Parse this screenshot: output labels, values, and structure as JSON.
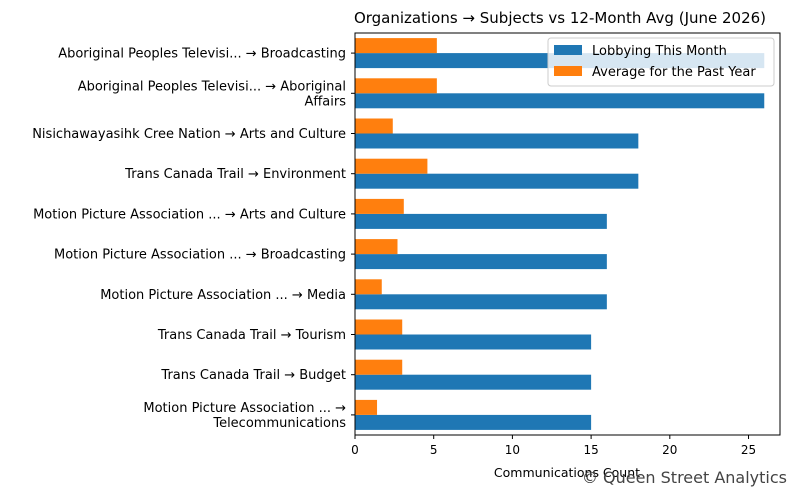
{
  "chart_data": {
    "type": "bar",
    "orientation": "horizontal",
    "title": "Organizations → Subjects vs 12-Month Avg (June 2026)",
    "xlabel": "Communications Count",
    "ylabel": "",
    "xlim": [
      0,
      27
    ],
    "xticks": [
      "0",
      "5",
      "10",
      "15",
      "20",
      "25"
    ],
    "grid": false,
    "legend_position": "top-right",
    "categories": [
      [
        "Aboriginal Peoples Televisi... → Broadcasting"
      ],
      [
        "Aboriginal Peoples Televisi... → Aboriginal",
        "Affairs"
      ],
      [
        "Nisichawayasihk Cree Nation → Arts and Culture"
      ],
      [
        "Trans Canada Trail → Environment"
      ],
      [
        "Motion Picture Association ... → Arts and Culture"
      ],
      [
        "Motion Picture Association ... → Broadcasting"
      ],
      [
        "Motion Picture Association ... → Media"
      ],
      [
        "Trans Canada Trail → Tourism"
      ],
      [
        "Trans Canada Trail → Budget"
      ],
      [
        "Motion Picture Association ... →",
        "Telecommunications"
      ]
    ],
    "series": [
      {
        "name": "Lobbying This Month",
        "color": "#1f77b4",
        "values": [
          26,
          26,
          18,
          18,
          16,
          16,
          16,
          15,
          15,
          15
        ]
      },
      {
        "name": "Average for the Past Year",
        "color": "#ff7f0e",
        "values": [
          5.2,
          5.2,
          2.4,
          4.6,
          3.1,
          2.7,
          1.7,
          3.0,
          3.0,
          1.4
        ]
      }
    ]
  },
  "credit": "© Queen Street Analytics"
}
